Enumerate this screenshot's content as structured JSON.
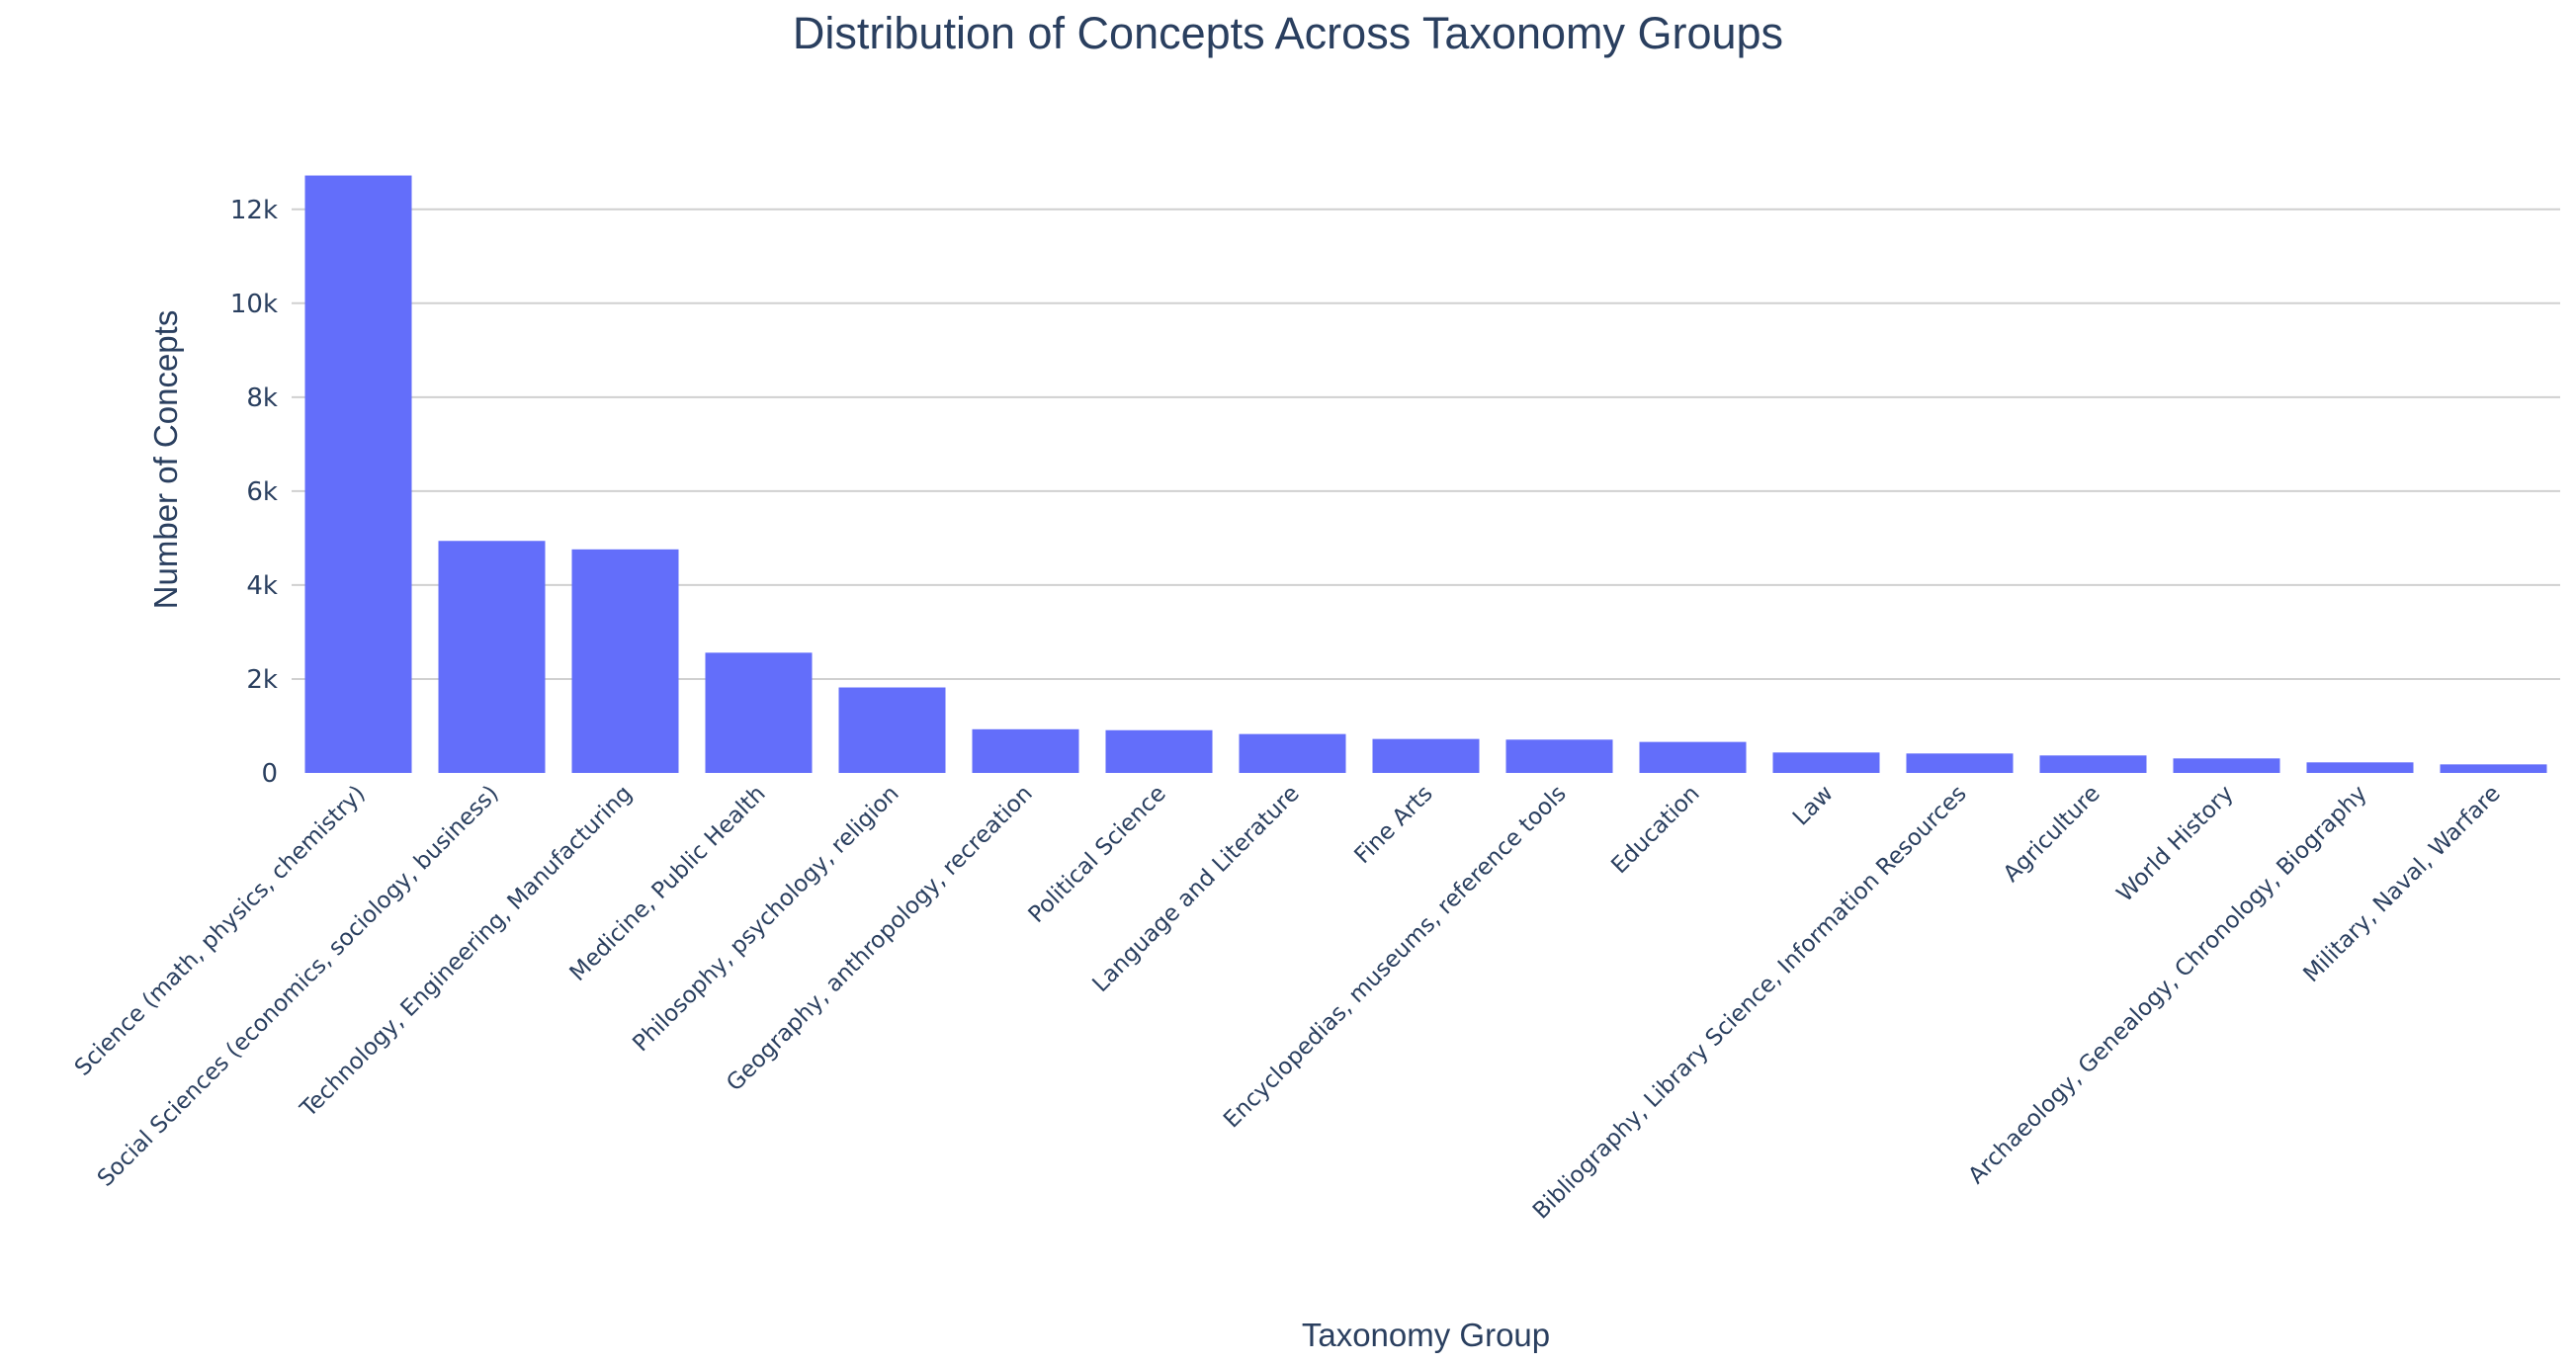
{
  "chart_data": {
    "type": "bar",
    "title": "Distribution of Concepts Across Taxonomy Groups",
    "xlabel": "Taxonomy Group",
    "ylabel": "Number of Concepts",
    "ylim": [
      0,
      13300
    ],
    "yticks": [
      0,
      2000,
      4000,
      6000,
      8000,
      10000,
      12000
    ],
    "ytick_labels": [
      "0",
      "2k",
      "4k",
      "6k",
      "8k",
      "10k",
      "12k"
    ],
    "grid": true,
    "bar_color": "#636efa",
    "categories": [
      "Science (math, physics, chemistry)",
      "Social Sciences (economics, sociology, business)",
      "Technology, Engineering, Manufacturing",
      "Medicine, Public Health",
      "Philosophy, psychology, religion",
      "Geography, anthropology, recreation",
      "Political Science",
      "Language and Literature",
      "Fine Arts",
      "Encyclopedias, museums, reference tools",
      "Education",
      "Law",
      "Bibliography, Library Science, Information Resources",
      "Agriculture",
      "World History",
      "Archaeology, Genealogy, Chronology, Biography",
      "Military, Naval, Warfare"
    ],
    "values": [
      12720,
      4940,
      4760,
      2560,
      1820,
      930,
      910,
      828,
      723,
      709,
      660,
      435,
      414,
      372,
      309,
      225,
      182
    ]
  }
}
